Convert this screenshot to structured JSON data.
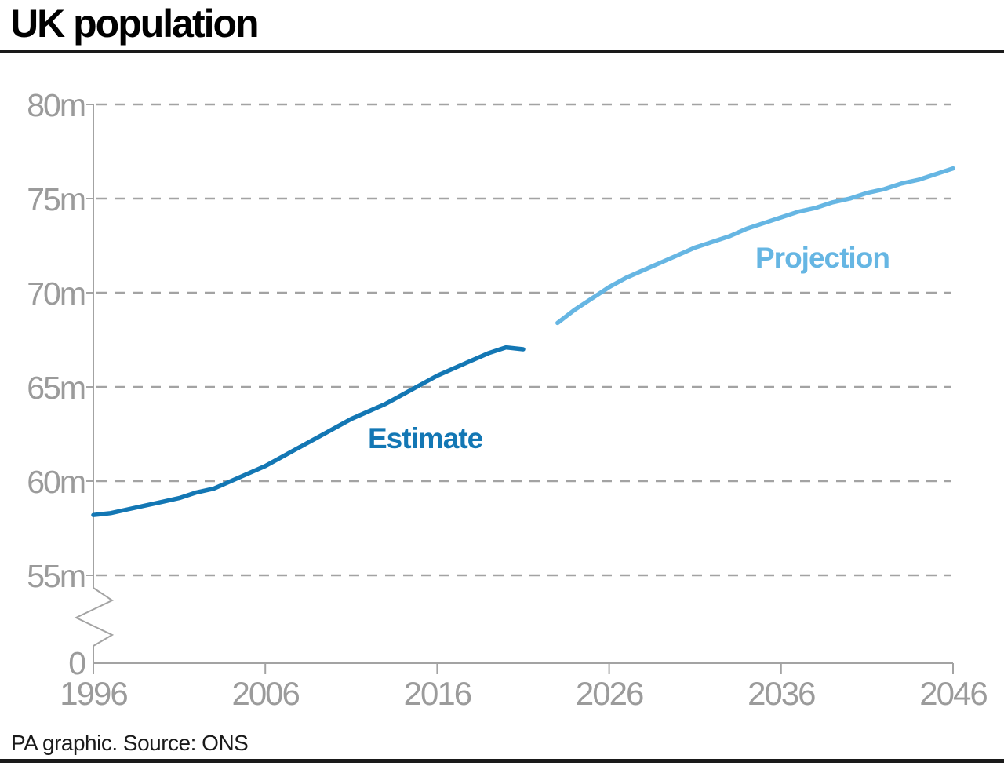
{
  "title": "UK population",
  "footer": {
    "source_line": "PA graphic. Source: ONS"
  },
  "colors": {
    "estimate_line": "#1377b4",
    "projection_line": "#66b6e3",
    "axis": "#a3a3a3",
    "gridline": "#a3a3a3",
    "tick_label": "#9b9b9b",
    "title_text": "#000000",
    "rule": "#1a1a1a"
  },
  "chart_data": {
    "type": "line",
    "title": "UK population",
    "xlabel": "",
    "ylabel": "",
    "units": "millions of people",
    "grid": "horizontal dashed gridlines at labeled y ticks",
    "legend_position": "inline labels next to each line",
    "x_axis": {
      "tick_values": [
        1996,
        2006,
        2016,
        2026,
        2036,
        2046
      ],
      "tick_labels": [
        "1996",
        "2006",
        "2016",
        "2026",
        "2036",
        "2046"
      ],
      "range": [
        1996,
        2046
      ]
    },
    "y_axis": {
      "tick_values": [
        80,
        75,
        70,
        65,
        60,
        55
      ],
      "tick_labels": [
        "80m",
        "75m",
        "70m",
        "65m",
        "60m",
        "55m"
      ],
      "zero_label": "0",
      "axis_break": true,
      "displayed_range": [
        55,
        80
      ]
    },
    "series": [
      {
        "name": "Estimate",
        "color": "#1377b4",
        "years": [
          1996,
          1997,
          1998,
          1999,
          2000,
          2001,
          2002,
          2003,
          2004,
          2005,
          2006,
          2007,
          2008,
          2009,
          2010,
          2011,
          2012,
          2013,
          2014,
          2015,
          2016,
          2017,
          2018,
          2019,
          2020,
          2021
        ],
        "values": [
          58.2,
          58.3,
          58.5,
          58.7,
          58.9,
          59.1,
          59.4,
          59.6,
          60.0,
          60.4,
          60.8,
          61.3,
          61.8,
          62.3,
          62.8,
          63.3,
          63.7,
          64.1,
          64.6,
          65.1,
          65.6,
          66.0,
          66.4,
          66.8,
          67.1,
          67.0
        ]
      },
      {
        "name": "Projection",
        "color": "#66b6e3",
        "years": [
          2023,
          2024,
          2025,
          2026,
          2027,
          2028,
          2029,
          2030,
          2031,
          2032,
          2033,
          2034,
          2035,
          2036,
          2037,
          2038,
          2039,
          2040,
          2041,
          2042,
          2043,
          2044,
          2045,
          2046
        ],
        "values": [
          68.4,
          69.1,
          69.7,
          70.3,
          70.8,
          71.2,
          71.6,
          72.0,
          72.4,
          72.7,
          73.0,
          73.4,
          73.7,
          74.0,
          74.3,
          74.5,
          74.8,
          75.0,
          75.3,
          75.5,
          75.8,
          76.0,
          76.3,
          76.6
        ]
      }
    ]
  }
}
